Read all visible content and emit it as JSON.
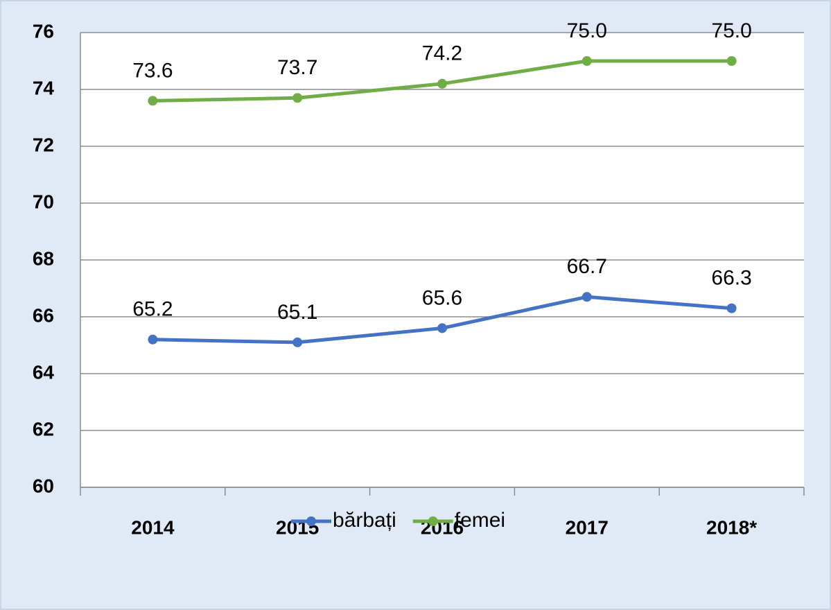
{
  "chart_data": {
    "type": "line",
    "categories": [
      "2014",
      "2015",
      "2016",
      "2017",
      "2018*"
    ],
    "series": [
      {
        "name": "bărbați",
        "color": "#4472c4",
        "values": [
          65.2,
          65.1,
          65.6,
          66.7,
          66.3
        ],
        "value_labels": [
          "65.2",
          "65.1",
          "65.6",
          "66.7",
          "66.3"
        ]
      },
      {
        "name": "femei",
        "color": "#70ad47",
        "values": [
          73.6,
          73.7,
          74.2,
          75.0,
          75.0
        ],
        "value_labels": [
          "73.6",
          "73.7",
          "74.2",
          "75.0",
          "75.0"
        ]
      }
    ],
    "ylim": [
      60,
      76
    ],
    "yticks": [
      60,
      62,
      64,
      66,
      68,
      70,
      72,
      74,
      76
    ],
    "grid": true,
    "legend": "bottom"
  }
}
